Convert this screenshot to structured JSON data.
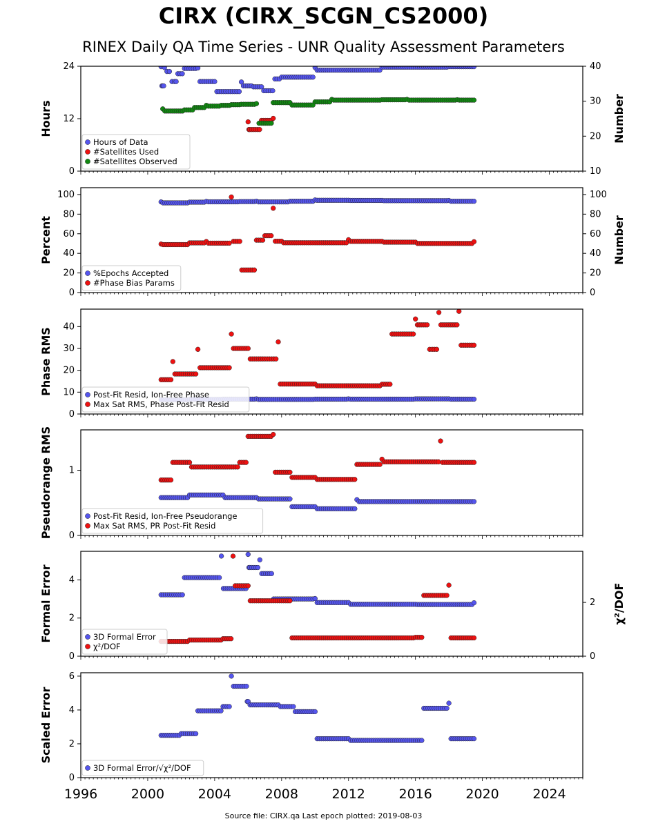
{
  "title": "CIRX (CIRX_SCGN_CS2000)",
  "subtitle": "RINEX Daily QA Time Series - UNR Quality Assessment Parameters",
  "source": "Source file: CIRX.qa Last epoch plotted: 2019-08-03",
  "colors": {
    "blue": "#5555ee",
    "red": "#ee1111",
    "green": "#118811",
    "edge": "#222222"
  },
  "chart_data": [
    {
      "type": "scatter",
      "ylabel": "Hours",
      "y2label": "Number",
      "xlim": [
        1996,
        2026
      ],
      "ylim": [
        0,
        24
      ],
      "y2lim": [
        10,
        40
      ],
      "yticks": [
        0,
        12,
        24
      ],
      "y2ticks": [
        10,
        20,
        30,
        40
      ],
      "legend": "lower-left",
      "series": [
        {
          "name": "Hours of Data",
          "color": "blue",
          "axis": "left",
          "x": [
            2000.8,
            2000.9,
            2001.0,
            2001.3,
            2001.6,
            2001.8,
            2002.2,
            2003.0,
            2004.0,
            2004.8,
            2005.6,
            2006.2,
            2006.8,
            2007.2,
            2007.6,
            2008.0,
            2010.0,
            2012.1,
            2014.0,
            2016.0,
            2018.0,
            2019.5
          ],
          "y": [
            23.9,
            19.5,
            23.7,
            22.8,
            20.5,
            22.3,
            23.5,
            23.6,
            20.5,
            18.2,
            20.4,
            19.5,
            19.3,
            18.4,
            21.1,
            21.5,
            23.7,
            23.1,
            23.8,
            23.8,
            23.9,
            23.9
          ]
        },
        {
          "name": "#Satellites Used",
          "color": "red",
          "axis": "right",
          "x": [
            2006.0,
            2006.1,
            2006.8,
            2007.5
          ],
          "y": [
            24.1,
            21.9,
            24.5,
            25.1
          ]
        },
        {
          "name": "#Satellites Observed",
          "color": "green",
          "axis": "right",
          "x": [
            2000.9,
            2001.5,
            2002.2,
            2002.8,
            2003.5,
            2004.0,
            2004.4,
            2005.0,
            2005.6,
            2006.0,
            2006.5,
            2006.8,
            2007.5,
            2008.5,
            2009.5,
            2010.0,
            2011.0,
            2012.5,
            2014.0,
            2015.5,
            2017.0,
            2018.5,
            2019.5
          ],
          "y": [
            27.8,
            27.2,
            27.5,
            28.2,
            28.8,
            28.6,
            28.8,
            29.0,
            29.1,
            29.1,
            29.3,
            23.7,
            29.6,
            29.6,
            28.9,
            29.8,
            30.5,
            30.3,
            30.4,
            30.5,
            30.3,
            30.4,
            30.3
          ]
        }
      ]
    },
    {
      "type": "scatter",
      "ylabel": "Percent",
      "y2label": "Number",
      "xlim": [
        1996,
        2026
      ],
      "ylim": [
        0,
        107
      ],
      "y2lim": [
        0,
        107
      ],
      "yticks": [
        0,
        20,
        40,
        60,
        80,
        100
      ],
      "y2ticks": [
        0,
        20,
        40,
        60,
        80,
        100
      ],
      "legend": "lower-left",
      "series": [
        {
          "name": "%Epochs Accepted",
          "color": "blue",
          "axis": "left",
          "x": [
            2000.8,
            2001.5,
            2002.5,
            2003.5,
            2004.5,
            2005.5,
            2006.5,
            2007.5,
            2008.5,
            2010.0,
            2012.0,
            2014.0,
            2016.0,
            2018.0,
            2019.5
          ],
          "y": [
            92.5,
            91.5,
            92.2,
            93.0,
            92.6,
            92.8,
            93.2,
            92.5,
            93.1,
            94.5,
            94.1,
            94.0,
            93.8,
            93.9,
            93.1
          ]
        },
        {
          "name": "#Phase Bias Params",
          "color": "red",
          "axis": "right",
          "x": [
            2000.8,
            2001.5,
            2002.5,
            2003.5,
            2004.5,
            2005.0,
            2005.5,
            2006.0,
            2006.5,
            2007.0,
            2007.5,
            2008.0,
            2010.0,
            2012.0,
            2014.0,
            2016.0,
            2018.0,
            2019.5
          ],
          "y": [
            49.5,
            48.9,
            50.7,
            52.1,
            50.4,
            97.5,
            52.2,
            23.0,
            53.4,
            58.0,
            86.0,
            52.4,
            50.8,
            53.9,
            52.2,
            51.4,
            50.1,
            51.9
          ]
        }
      ]
    },
    {
      "type": "scatter",
      "ylabel": "Phase RMS",
      "xlim": [
        1996,
        2026
      ],
      "ylim": [
        0,
        48
      ],
      "yticks": [
        0,
        10,
        20,
        30,
        40
      ],
      "legend": "lower-left",
      "series": [
        {
          "name": "Post-Fit Resid, Ion-Free Phase",
          "color": "blue",
          "axis": "left",
          "x": [
            2000.8,
            2002.5,
            2004.5,
            2006.5,
            2008.5,
            2010.0,
            2012.0,
            2014.0,
            2016.0,
            2018.0,
            2019.5
          ],
          "y": [
            6.5,
            6.7,
            6.8,
            6.9,
            6.7,
            6.8,
            6.9,
            6.8,
            6.9,
            6.9,
            6.8
          ]
        },
        {
          "name": "Max Sat RMS, Phase Post-Fit Resid",
          "color": "red",
          "axis": "left",
          "x": [
            2000.8,
            2001.5,
            2002.5,
            2003.0,
            2004.0,
            2005.0,
            2006.0,
            2007.0,
            2007.8,
            2010.0,
            2012.0,
            2014.0,
            2014.6,
            2016.0,
            2016.7,
            2017.0,
            2017.4,
            2018.0,
            2018.6,
            2019.5
          ],
          "y": [
            15.7,
            24.0,
            18.3,
            29.6,
            21.2,
            36.6,
            30.0,
            25.2,
            33.0,
            13.7,
            12.9,
            13.6,
            36.6,
            43.5,
            40.8,
            29.6,
            46.5,
            40.8,
            47.0,
            31.5
          ]
        }
      ]
    },
    {
      "type": "scatter",
      "ylabel": "Pseudorange RMS",
      "xlim": [
        1996,
        2026
      ],
      "ylim": [
        0,
        1.62
      ],
      "yticks": [
        0,
        1
      ],
      "legend": "lower-left",
      "series": [
        {
          "name": "Post-Fit Resid, Ion-Free Pseudorange",
          "color": "blue",
          "axis": "left",
          "x": [
            2000.8,
            2002.5,
            2004.5,
            2006.5,
            2008.5,
            2010.0,
            2011.0,
            2012.5,
            2014.0,
            2016.0,
            2018.0,
            2019.5
          ],
          "y": [
            0.58,
            0.62,
            0.62,
            0.58,
            0.56,
            0.44,
            0.41,
            0.55,
            0.52,
            0.52,
            0.52,
            0.52
          ]
        },
        {
          "name": "Max Sat RMS, PR Post-Fit Resid",
          "color": "red",
          "axis": "left",
          "x": [
            2000.8,
            2001.5,
            2002.5,
            2004.0,
            2005.5,
            2006.0,
            2007.5,
            2008.5,
            2010.0,
            2011.0,
            2012.5,
            2014.0,
            2016.0,
            2017.5,
            2019.5
          ],
          "y": [
            0.85,
            1.12,
            1.12,
            1.05,
            1.12,
            1.52,
            1.55,
            0.97,
            0.89,
            0.86,
            1.09,
            1.17,
            1.13,
            1.45,
            1.12
          ]
        }
      ]
    },
    {
      "type": "scatter",
      "ylabel": "Formal Error",
      "y2label": "χ²/DOF",
      "xlim": [
        1996,
        2026
      ],
      "ylim": [
        0,
        5.5
      ],
      "y2lim": [
        0,
        3.9
      ],
      "yticks": [
        0,
        2,
        4
      ],
      "y2ticks": [
        0,
        2
      ],
      "legend": "lower-left",
      "series": [
        {
          "name": "3D Formal Error",
          "color": "blue",
          "axis": "left",
          "x": [
            2000.8,
            2002.2,
            2004.4,
            2005.0,
            2006.0,
            2006.1,
            2006.7,
            2007.4,
            2008.5,
            2010.0,
            2012.0,
            2014.0,
            2016.0,
            2018.0,
            2019.5
          ],
          "y": [
            3.22,
            4.12,
            5.25,
            3.55,
            5.34,
            4.65,
            5.05,
            4.33,
            3.0,
            3.02,
            2.81,
            2.72,
            2.72,
            2.71,
            2.8
          ]
        },
        {
          "name": "χ²/DOF",
          "color": "red",
          "axis": "right",
          "x": [
            2000.8,
            2002.5,
            2004.5,
            2005.1,
            2006.0,
            2008.5,
            2010.0,
            2012.0,
            2014.0,
            2016.0,
            2016.5,
            2018.0,
            2019.5
          ],
          "y": [
            0.55,
            0.6,
            0.65,
            3.72,
            2.62,
            2.06,
            0.68,
            0.68,
            0.68,
            0.7,
            2.26,
            2.64,
            0.68
          ]
        }
      ]
    },
    {
      "type": "scatter",
      "ylabel": "Scaled Error",
      "xlim": [
        1996,
        2026
      ],
      "ylim": [
        0,
        6.2
      ],
      "yticks": [
        0,
        2,
        4,
        6
      ],
      "xticks": [
        1996,
        2000,
        2004,
        2008,
        2012,
        2016,
        2020,
        2024
      ],
      "legend": "lower-left",
      "series": [
        {
          "name": "3D Formal Error/√χ²/DOF",
          "color": "blue",
          "axis": "left",
          "x": [
            2000.8,
            2002.0,
            2003.0,
            2004.5,
            2005.0,
            2005.9,
            2006.0,
            2007.8,
            2008.7,
            2010.0,
            2012.0,
            2014.0,
            2016.0,
            2016.5,
            2018.0,
            2019.5
          ],
          "y": [
            2.5,
            2.6,
            3.95,
            4.2,
            6.0,
            5.4,
            4.5,
            4.3,
            4.2,
            3.9,
            2.3,
            2.2,
            2.2,
            4.1,
            4.4,
            2.3
          ]
        }
      ]
    }
  ]
}
